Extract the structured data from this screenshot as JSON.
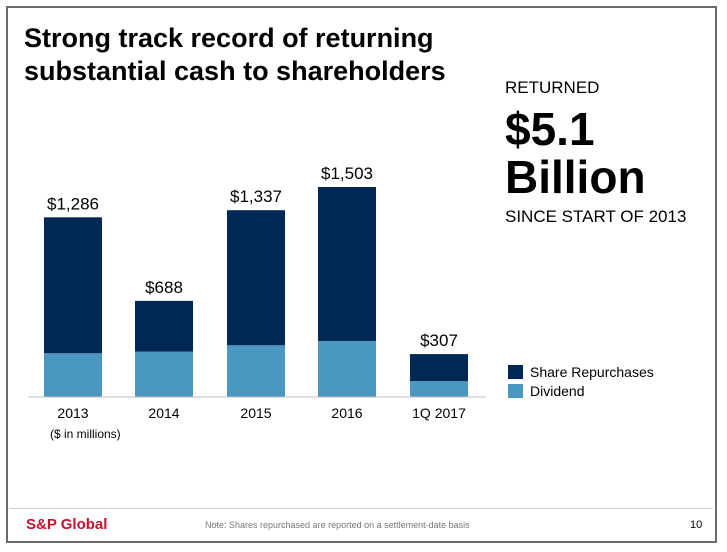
{
  "slide": {
    "title": "Strong track record of returning substantial cash to shareholders",
    "returned_label": "RETURNED",
    "amount": "$5.1",
    "amount_unit": "Billion",
    "since_label": "SINCE START OF 2013",
    "units_note": "($ in millions)",
    "brand": "S&P Global",
    "footnote": "Note:  Shares repurchased are reported on a settlement-date basis",
    "page_number": "10"
  },
  "colors": {
    "share_repurchases": "#002855",
    "dividend": "#4a97c2",
    "brand_red": "#c8102e"
  },
  "chart_data": {
    "type": "bar",
    "stacked": true,
    "categories": [
      "2013",
      "2014",
      "2015",
      "2016",
      "1Q 2017"
    ],
    "series": [
      {
        "name": "Dividend",
        "values": [
          313,
          325,
          370,
          401,
          114
        ]
      },
      {
        "name": "Share Repurchases",
        "values": [
          973,
          363,
          967,
          1102,
          193
        ]
      }
    ],
    "totals": [
      1286,
      688,
      1337,
      1503,
      307
    ],
    "total_labels": [
      "$1,286",
      "$688",
      "$1,337",
      "$1,503",
      "$307"
    ],
    "ylim": [
      0,
      1503
    ],
    "legend": [
      "Share Repurchases",
      "Dividend"
    ],
    "legend_position": "right",
    "grid": false
  }
}
